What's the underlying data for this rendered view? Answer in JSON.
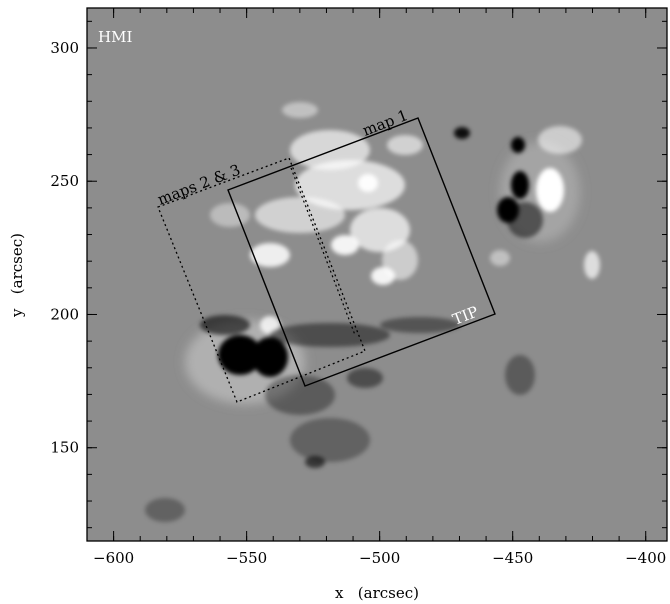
{
  "figure": {
    "instrument_label": "HMI",
    "x_axis": {
      "label": "x   (arcsec)",
      "range": [
        -610,
        -392
      ],
      "ticks": [
        {
          "value": -600,
          "label": "−600"
        },
        {
          "value": -550,
          "label": "−550"
        },
        {
          "value": -500,
          "label": "−500"
        },
        {
          "value": -450,
          "label": "−450"
        },
        {
          "value": -400,
          "label": "−400"
        }
      ],
      "minor_step": 10
    },
    "y_axis": {
      "label": "y   (arcsec)",
      "range": [
        115,
        315
      ],
      "ticks": [
        {
          "value": 300,
          "label": "300"
        },
        {
          "value": 250,
          "label": "250"
        },
        {
          "value": 200,
          "label": "200"
        },
        {
          "value": 150,
          "label": "150"
        }
      ],
      "minor_step": 10
    },
    "overlays": {
      "map1_label": "map 1",
      "maps23_label": "maps 2 & 3",
      "tip_label": "TIP"
    },
    "colors": {
      "background_gray": "#8d8d8d",
      "positive_polarity": "#ffffff",
      "negative_polarity": "#000000",
      "frame": "#000000"
    }
  }
}
